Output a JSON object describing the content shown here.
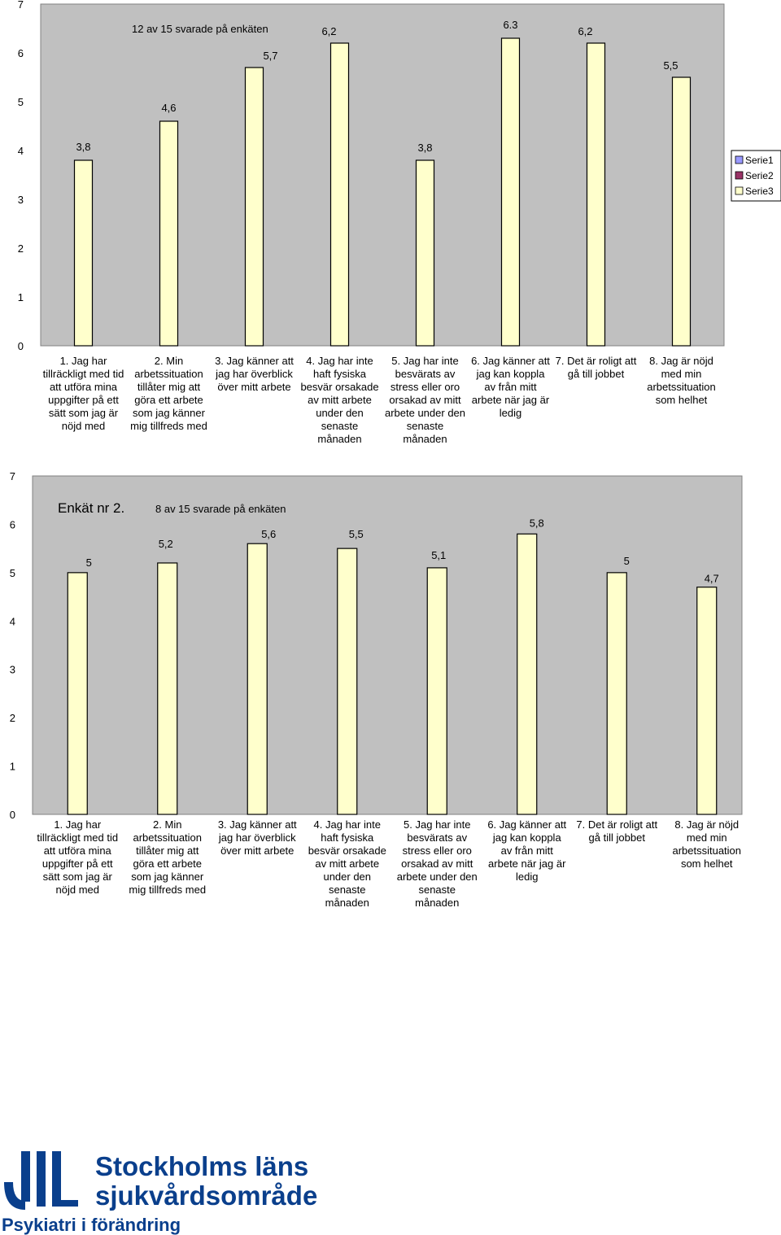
{
  "chart_data": [
    {
      "type": "bar",
      "annotation": "12 av 15  svarade på enkäten",
      "ylim": [
        0,
        7
      ],
      "yticks": [
        "0",
        "1",
        "2",
        "3",
        "4",
        "5",
        "6",
        "7"
      ],
      "categories": [
        "1. Jag har tillräckligt med tid att utföra mina uppgifter på ett sätt som jag är nöjd med",
        "2. Min arbetssituation tillåter mig att göra ett arbete som jag känner mig tillfreds med",
        "3. Jag känner att jag har överblick över mitt arbete",
        "4. Jag har inte haft fysiska besvär orsakade av mitt arbete under den senaste månaden",
        "5. Jag har inte besvärats av stress eller oro orsakad av mitt arbete under den senaste månaden",
        "6. Jag känner att jag kan koppla av från mitt arbete när jag är ledig",
        "7. Det är roligt att gå till jobbet",
        "8. Jag är nöjd med min arbetssituation som helhet"
      ],
      "category_lines": [
        [
          "1. Jag har",
          "tillräckligt med tid",
          "att utföra mina",
          "uppgifter på ett",
          "sätt som jag är",
          "nöjd med"
        ],
        [
          "2. Min",
          "arbetssituation",
          "tillåter mig att",
          "göra ett arbete",
          "som jag känner",
          "mig tillfreds med"
        ],
        [
          "3. Jag känner att",
          "jag har överblick",
          "över mitt arbete"
        ],
        [
          "4. Jag har inte",
          "haft fysiska",
          "besvär orsakade",
          "av mitt arbete",
          "under den",
          "senaste",
          "månaden"
        ],
        [
          "5. Jag har inte",
          "besvärats av",
          "stress eller oro",
          "orsakad av mitt",
          "arbete under den",
          "senaste",
          "månaden"
        ],
        [
          "6. Jag känner att",
          "jag kan koppla",
          "av från mitt",
          "arbete när jag är",
          "ledig"
        ],
        [
          "7. Det är roligt att",
          "gå till jobbet"
        ],
        [
          "8. Jag är nöjd",
          "med min",
          "arbetssituation",
          "som helhet"
        ]
      ],
      "series": [
        {
          "name": "Serie1",
          "color": "#9999ff",
          "values": [
            null,
            null,
            null,
            null,
            null,
            null,
            null,
            null
          ]
        },
        {
          "name": "Serie2",
          "color": "#993366",
          "values": [
            null,
            null,
            null,
            null,
            null,
            null,
            null,
            null
          ]
        },
        {
          "name": "Serie3",
          "color": "#ffffcc",
          "values": [
            3.8,
            4.6,
            5.7,
            6.2,
            3.8,
            6.3,
            6.2,
            5.5
          ]
        }
      ],
      "data_labels": [
        "3,8",
        "4,6",
        "5,7",
        "6,2",
        "3,8",
        "6.3",
        "6,2",
        "5,5"
      ],
      "legend_position": "right",
      "grid": false
    },
    {
      "type": "bar",
      "title": "Enkät nr 2.",
      "annotation": "8 av 15  svarade på enkäten",
      "ylim": [
        0,
        7
      ],
      "yticks": [
        "0",
        "1",
        "2",
        "3",
        "4",
        "5",
        "6",
        "7"
      ],
      "categories": [
        "1. Jag har tillräckligt med tid att utföra mina uppgifter på ett sätt som jag är nöjd med",
        "2. Min arbetssituation tillåter mig att göra ett arbete som jag känner mig tillfreds med",
        "3. Jag känner att jag har överblick över mitt arbete",
        "4. Jag har inte haft fysiska besvär orsakade av mitt arbete under den senaste månaden",
        "5. Jag har inte besvärats av stress eller oro orsakad av mitt arbete under den senaste månaden",
        "6. Jag känner att jag kan koppla av från mitt arbete när jag är ledig",
        "7. Det är roligt att gå till jobbet",
        "8. Jag är nöjd med min arbetssituation som helhet"
      ],
      "category_lines": [
        [
          "1. Jag har",
          "tillräckligt med tid",
          "att utföra mina",
          "uppgifter på ett",
          "sätt som jag är",
          "nöjd med"
        ],
        [
          "2. Min",
          "arbetssituation",
          "tillåter mig att",
          "göra ett arbete",
          "som jag känner",
          "mig tillfreds med"
        ],
        [
          "3. Jag känner att",
          "jag har överblick",
          "över mitt arbete"
        ],
        [
          "4. Jag har inte",
          "haft fysiska",
          "besvär orsakade",
          "av mitt arbete",
          "under den",
          "senaste",
          "månaden"
        ],
        [
          "5. Jag har inte",
          "besvärats av",
          "stress eller oro",
          "orsakad av mitt",
          "arbete under den",
          "senaste",
          "månaden"
        ],
        [
          "6. Jag känner att",
          "jag kan koppla",
          "av från mitt",
          "arbete när jag är",
          "ledig"
        ],
        [
          "7. Det är roligt att",
          "gå till jobbet"
        ],
        [
          "8. Jag är nöjd",
          "med min",
          "arbetssituation",
          "som helhet"
        ]
      ],
      "series": [
        {
          "color": "#ffffcc",
          "values": [
            5,
            5.2,
            5.6,
            5.5,
            5.1,
            5.8,
            5,
            4.7
          ]
        }
      ],
      "data_labels": [
        "5",
        "5,2",
        "5,6",
        "5,5",
        "5,1",
        "5,8",
        "5",
        "4,7"
      ],
      "grid": false
    }
  ],
  "logo": {
    "line1": "Stockholms läns",
    "line2": "sjukvårdsområde",
    "tagline": "Psykiatri i förändring",
    "color": "#0a3f8c"
  }
}
